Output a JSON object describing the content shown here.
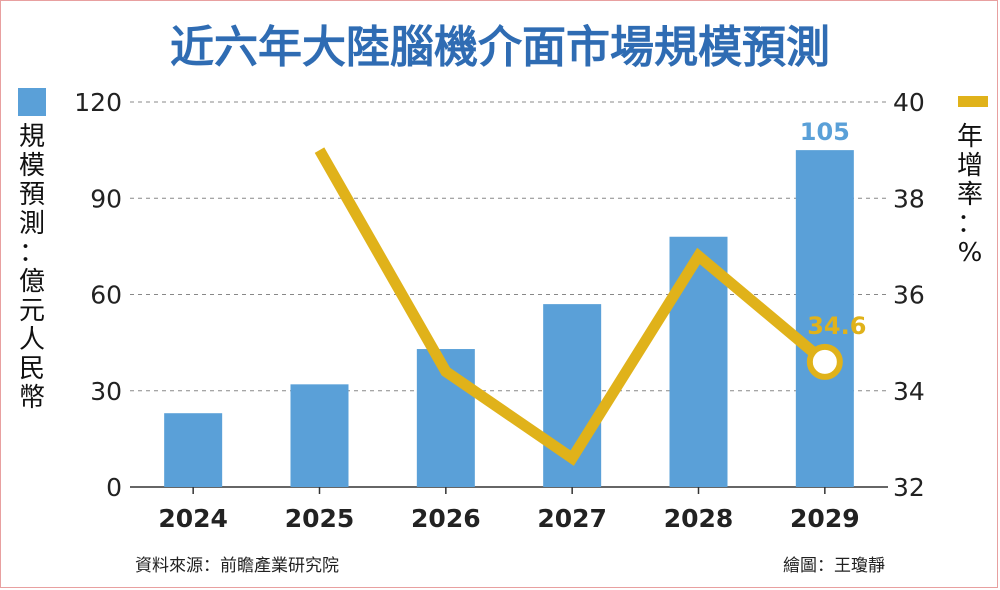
{
  "chart_data": {
    "type": "bar",
    "title": "近六年大陸腦機介面市場規模預測",
    "categories": [
      "2024",
      "2025",
      "2026",
      "2027",
      "2028",
      "2029"
    ],
    "series": [
      {
        "name": "規模預測：億元人民幣",
        "type": "bar",
        "axis": "left",
        "values": [
          23,
          32,
          43,
          57,
          78,
          105
        ]
      },
      {
        "name": "年增率：%",
        "type": "line",
        "axis": "right",
        "values": [
          39.0,
          34.4,
          32.6,
          36.8,
          34.6
        ],
        "x": [
          "2025",
          "2026",
          "2027",
          "2028",
          "2029"
        ]
      }
    ],
    "y_left": {
      "ylim": [
        0,
        120
      ],
      "ticks": [
        "0",
        "30",
        "60",
        "90",
        "120"
      ]
    },
    "y_right": {
      "ylim": [
        32,
        40
      ],
      "ticks": [
        "32",
        "34",
        "36",
        "38",
        "40"
      ]
    },
    "ylabel_left": [
      "規",
      "模",
      "預",
      "測",
      "：",
      "億",
      "元",
      "人",
      "民",
      "幣"
    ],
    "ylabel_right": [
      "年",
      "增",
      "率",
      "：",
      "%"
    ],
    "annotations": {
      "bar_last": "105",
      "line_last": "34.6"
    },
    "grid": "horizontal-dashed",
    "colors": {
      "bar": "#5aa0d8",
      "line": "#e0b21a",
      "title": "#2f6cb3"
    }
  },
  "footer": {
    "source": "資料來源：前瞻產業研究院",
    "credit": "繪圖：王瓊靜"
  }
}
